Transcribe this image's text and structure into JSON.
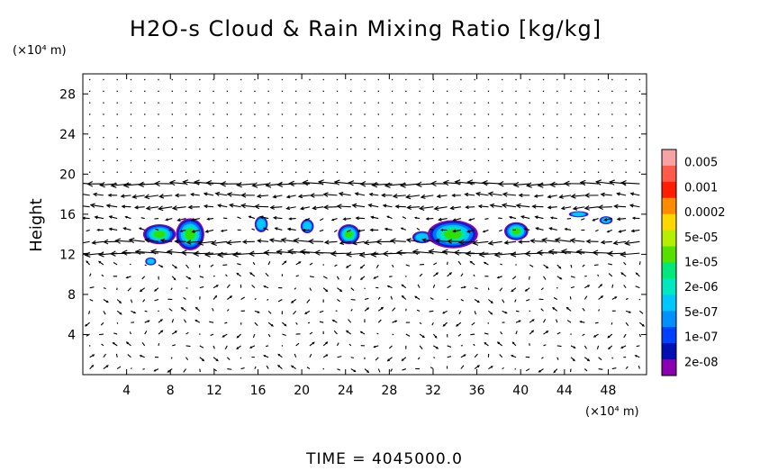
{
  "chart_data": {
    "type": "heatmap",
    "title": "H2O-s Cloud & Rain Mixing Ratio [kg/kg]",
    "ylabel": "Height",
    "y_unit": "(×10⁴ m)",
    "x_unit": "(×10⁴ m)",
    "xlim": [
      0,
      51.5
    ],
    "ylim": [
      0,
      30
    ],
    "x_ticks": [
      4,
      8,
      12,
      16,
      20,
      24,
      28,
      32,
      36,
      40,
      44,
      48
    ],
    "y_ticks": [
      4,
      8,
      12,
      16,
      20,
      24,
      28
    ],
    "time_label": "TIME  =  4045000.0",
    "colorbar": {
      "labels": [
        "0.005",
        "0.001",
        "0.0002",
        "5e-05",
        "1e-05",
        "2e-06",
        "5e-07",
        "1e-07",
        "2e-08"
      ],
      "colors": [
        "#f7a3a3",
        "#ff5a4a",
        "#ff1e00",
        "#ff8c00",
        "#ffd700",
        "#b4ee00",
        "#55e000",
        "#00e87a",
        "#00e8c0",
        "#00c8ff",
        "#0090ff",
        "#0040ff",
        "#0010b0",
        "#8a00b0"
      ]
    },
    "cloud_blobs": [
      {
        "x": 7.0,
        "y": 14.0,
        "rx": 1.5,
        "ry": 1.0,
        "core": 0.5
      },
      {
        "x": 9.8,
        "y": 14.0,
        "rx": 1.3,
        "ry": 1.6,
        "core": 0.9
      },
      {
        "x": 6.2,
        "y": 11.3,
        "rx": 0.5,
        "ry": 0.4,
        "core": 0.3
      },
      {
        "x": 16.3,
        "y": 15.0,
        "rx": 0.6,
        "ry": 0.8,
        "core": 0.3
      },
      {
        "x": 20.5,
        "y": 14.8,
        "rx": 0.6,
        "ry": 0.7,
        "core": 0.3
      },
      {
        "x": 24.3,
        "y": 14.0,
        "rx": 1.0,
        "ry": 1.0,
        "core": 0.6
      },
      {
        "x": 31.0,
        "y": 13.7,
        "rx": 0.9,
        "ry": 0.6,
        "core": 0.3
      },
      {
        "x": 33.8,
        "y": 14.0,
        "rx": 2.3,
        "ry": 1.4,
        "core": 1.2
      },
      {
        "x": 39.6,
        "y": 14.3,
        "rx": 1.1,
        "ry": 0.9,
        "core": 0.5
      },
      {
        "x": 45.3,
        "y": 16.0,
        "rx": 0.9,
        "ry": 0.3,
        "core": 0.1
      },
      {
        "x": 47.8,
        "y": 15.4,
        "rx": 0.6,
        "ry": 0.4,
        "core": 0.2
      }
    ],
    "wind_bands": [
      {
        "y": 19.2,
        "u": -1.0
      },
      {
        "y": 18.2,
        "u": -1.0
      },
      {
        "y": 17.0,
        "u": -0.85
      },
      {
        "y": 16.0,
        "u": -1.0
      },
      {
        "y": 15.0,
        "u": -0.7
      },
      {
        "y": 14.0,
        "u": -0.9
      },
      {
        "y": 13.0,
        "u": -1.0
      },
      {
        "y": 12.0,
        "u": -1.0
      }
    ]
  }
}
